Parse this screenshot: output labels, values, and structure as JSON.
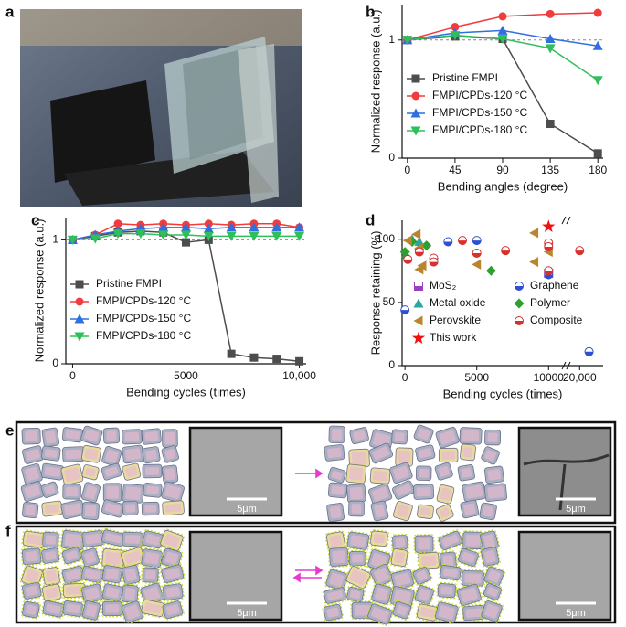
{
  "panel_labels": {
    "a": "a",
    "e": "e",
    "f": "f"
  },
  "scale_bar": "5μm",
  "chart_data": [
    {
      "type": "line",
      "panel": "b",
      "xlabel": "Bending angles (degree)",
      "ylabel": "Normalized response (a.u.)",
      "x": [
        0,
        45,
        90,
        135,
        180
      ],
      "xlim": [
        -5,
        185
      ],
      "xticks": [
        0,
        45,
        90,
        135,
        180
      ],
      "ylim": [
        0,
        1.3
      ],
      "yticks": [
        0,
        1
      ],
      "reference_line": 1,
      "legend": "lower left",
      "series": [
        {
          "name": "Pristine FMPI",
          "color": "#4d4d4d",
          "marker": "square",
          "values": [
            1,
            1.03,
            1.01,
            0.29,
            0.04
          ]
        },
        {
          "name": "FMPI/CPDs-120 °C",
          "color": "#f03c3c",
          "marker": "circle",
          "values": [
            1,
            1.11,
            1.2,
            1.22,
            1.23
          ]
        },
        {
          "name": "FMPI/CPDs-150 °C",
          "color": "#2f6fe0",
          "marker": "triangle-up",
          "values": [
            1,
            1.06,
            1.08,
            1.01,
            0.95
          ]
        },
        {
          "name": "FMPI/CPDs-180 °C",
          "color": "#2fbf5a",
          "marker": "triangle-down",
          "values": [
            1,
            1.04,
            1.01,
            0.93,
            0.66
          ]
        }
      ]
    },
    {
      "type": "line",
      "panel": "c",
      "xlabel": "Bending cycles (times)",
      "ylabel": "Normalized response (a.u.)",
      "x": [
        0,
        1000,
        2000,
        3000,
        4000,
        5000,
        6000,
        7000,
        8000,
        9000,
        10000
      ],
      "xlim": [
        -300,
        10300
      ],
      "xticks": [
        0,
        5000,
        {
          "value": 10000,
          "label": "10,000"
        }
      ],
      "ylim": [
        0,
        1.18
      ],
      "yticks": [
        0,
        1
      ],
      "reference_line": 1,
      "legend": "lower left",
      "series": [
        {
          "name": "Pristine FMPI",
          "color": "#4d4d4d",
          "marker": "square",
          "values": [
            1,
            1.03,
            1.06,
            1.07,
            1.06,
            0.98,
            1.0,
            0.08,
            0.05,
            0.04,
            0.02
          ]
        },
        {
          "name": "FMPI/CPDs-120 °C",
          "color": "#f03c3c",
          "marker": "circle",
          "values": [
            1,
            1.04,
            1.13,
            1.12,
            1.13,
            1.12,
            1.13,
            1.12,
            1.13,
            1.13,
            1.1
          ]
        },
        {
          "name": "FMPI/CPDs-150 °C",
          "color": "#2f6fe0",
          "marker": "triangle-up",
          "values": [
            1,
            1.04,
            1.07,
            1.09,
            1.1,
            1.1,
            1.09,
            1.1,
            1.1,
            1.1,
            1.1
          ]
        },
        {
          "name": "FMPI/CPDs-180 °C",
          "color": "#2fbf5a",
          "marker": "triangle-down",
          "values": [
            1,
            1.01,
            1.05,
            1.05,
            1.04,
            1.04,
            1.03,
            1.03,
            1.03,
            1.03,
            1.03
          ]
        }
      ]
    },
    {
      "type": "scatter",
      "panel": "d",
      "xlabel": "Bending cycles (times)",
      "ylabel": "Response retaining (%)",
      "xlim": [
        -200,
        22500
      ],
      "xbreak": [
        11000,
        19000
      ],
      "xticks": [
        0,
        5000,
        10000,
        {
          "value": 20000,
          "label": "20,000"
        }
      ],
      "ylim": [
        0,
        115
      ],
      "yticks": [
        0,
        50,
        100
      ],
      "series": [
        {
          "name": "MoS₂",
          "color": "#9b3fc0",
          "marker": "half-square",
          "x": [
            10000
          ],
          "values": [
            73
          ]
        },
        {
          "name": "Graphene",
          "color": "#2f4fd0",
          "marker": "half-circle",
          "x": [
            0,
            3000,
            5000,
            10000,
            21000
          ],
          "values": [
            44,
            98,
            99,
            72,
            11
          ]
        },
        {
          "name": "Metal oxide",
          "color": "#2aa6a6",
          "marker": "triangle-up",
          "x": [
            500,
            1000
          ],
          "values": [
            100,
            98
          ]
        },
        {
          "name": "Polymer",
          "color": "#2f9f2f",
          "marker": "diamond",
          "x": [
            0,
            100,
            500,
            1000,
            1500,
            6000
          ],
          "values": [
            90,
            86,
            98,
            92,
            95,
            75
          ]
        },
        {
          "name": "Perovskite",
          "color": "#b8862e",
          "marker": "triangle-left",
          "x": [
            200,
            800,
            1000,
            1000,
            1200,
            5000,
            9000,
            9000,
            10000,
            10000
          ],
          "values": [
            99,
            104,
            93,
            76,
            79,
            80,
            105,
            82,
            95,
            90
          ]
        },
        {
          "name": "Composite",
          "color": "#d63030",
          "marker": "half-circle",
          "x": [
            200,
            1000,
            2000,
            2000,
            4000,
            5000,
            7000,
            10000,
            10000,
            10000,
            20000
          ],
          "values": [
            84,
            90,
            85,
            82,
            99,
            89,
            91,
            97,
            94,
            75,
            91
          ]
        },
        {
          "name": "This work",
          "color": "#f01010",
          "marker": "star",
          "x": [
            10000
          ],
          "values": [
            110
          ]
        }
      ]
    }
  ]
}
